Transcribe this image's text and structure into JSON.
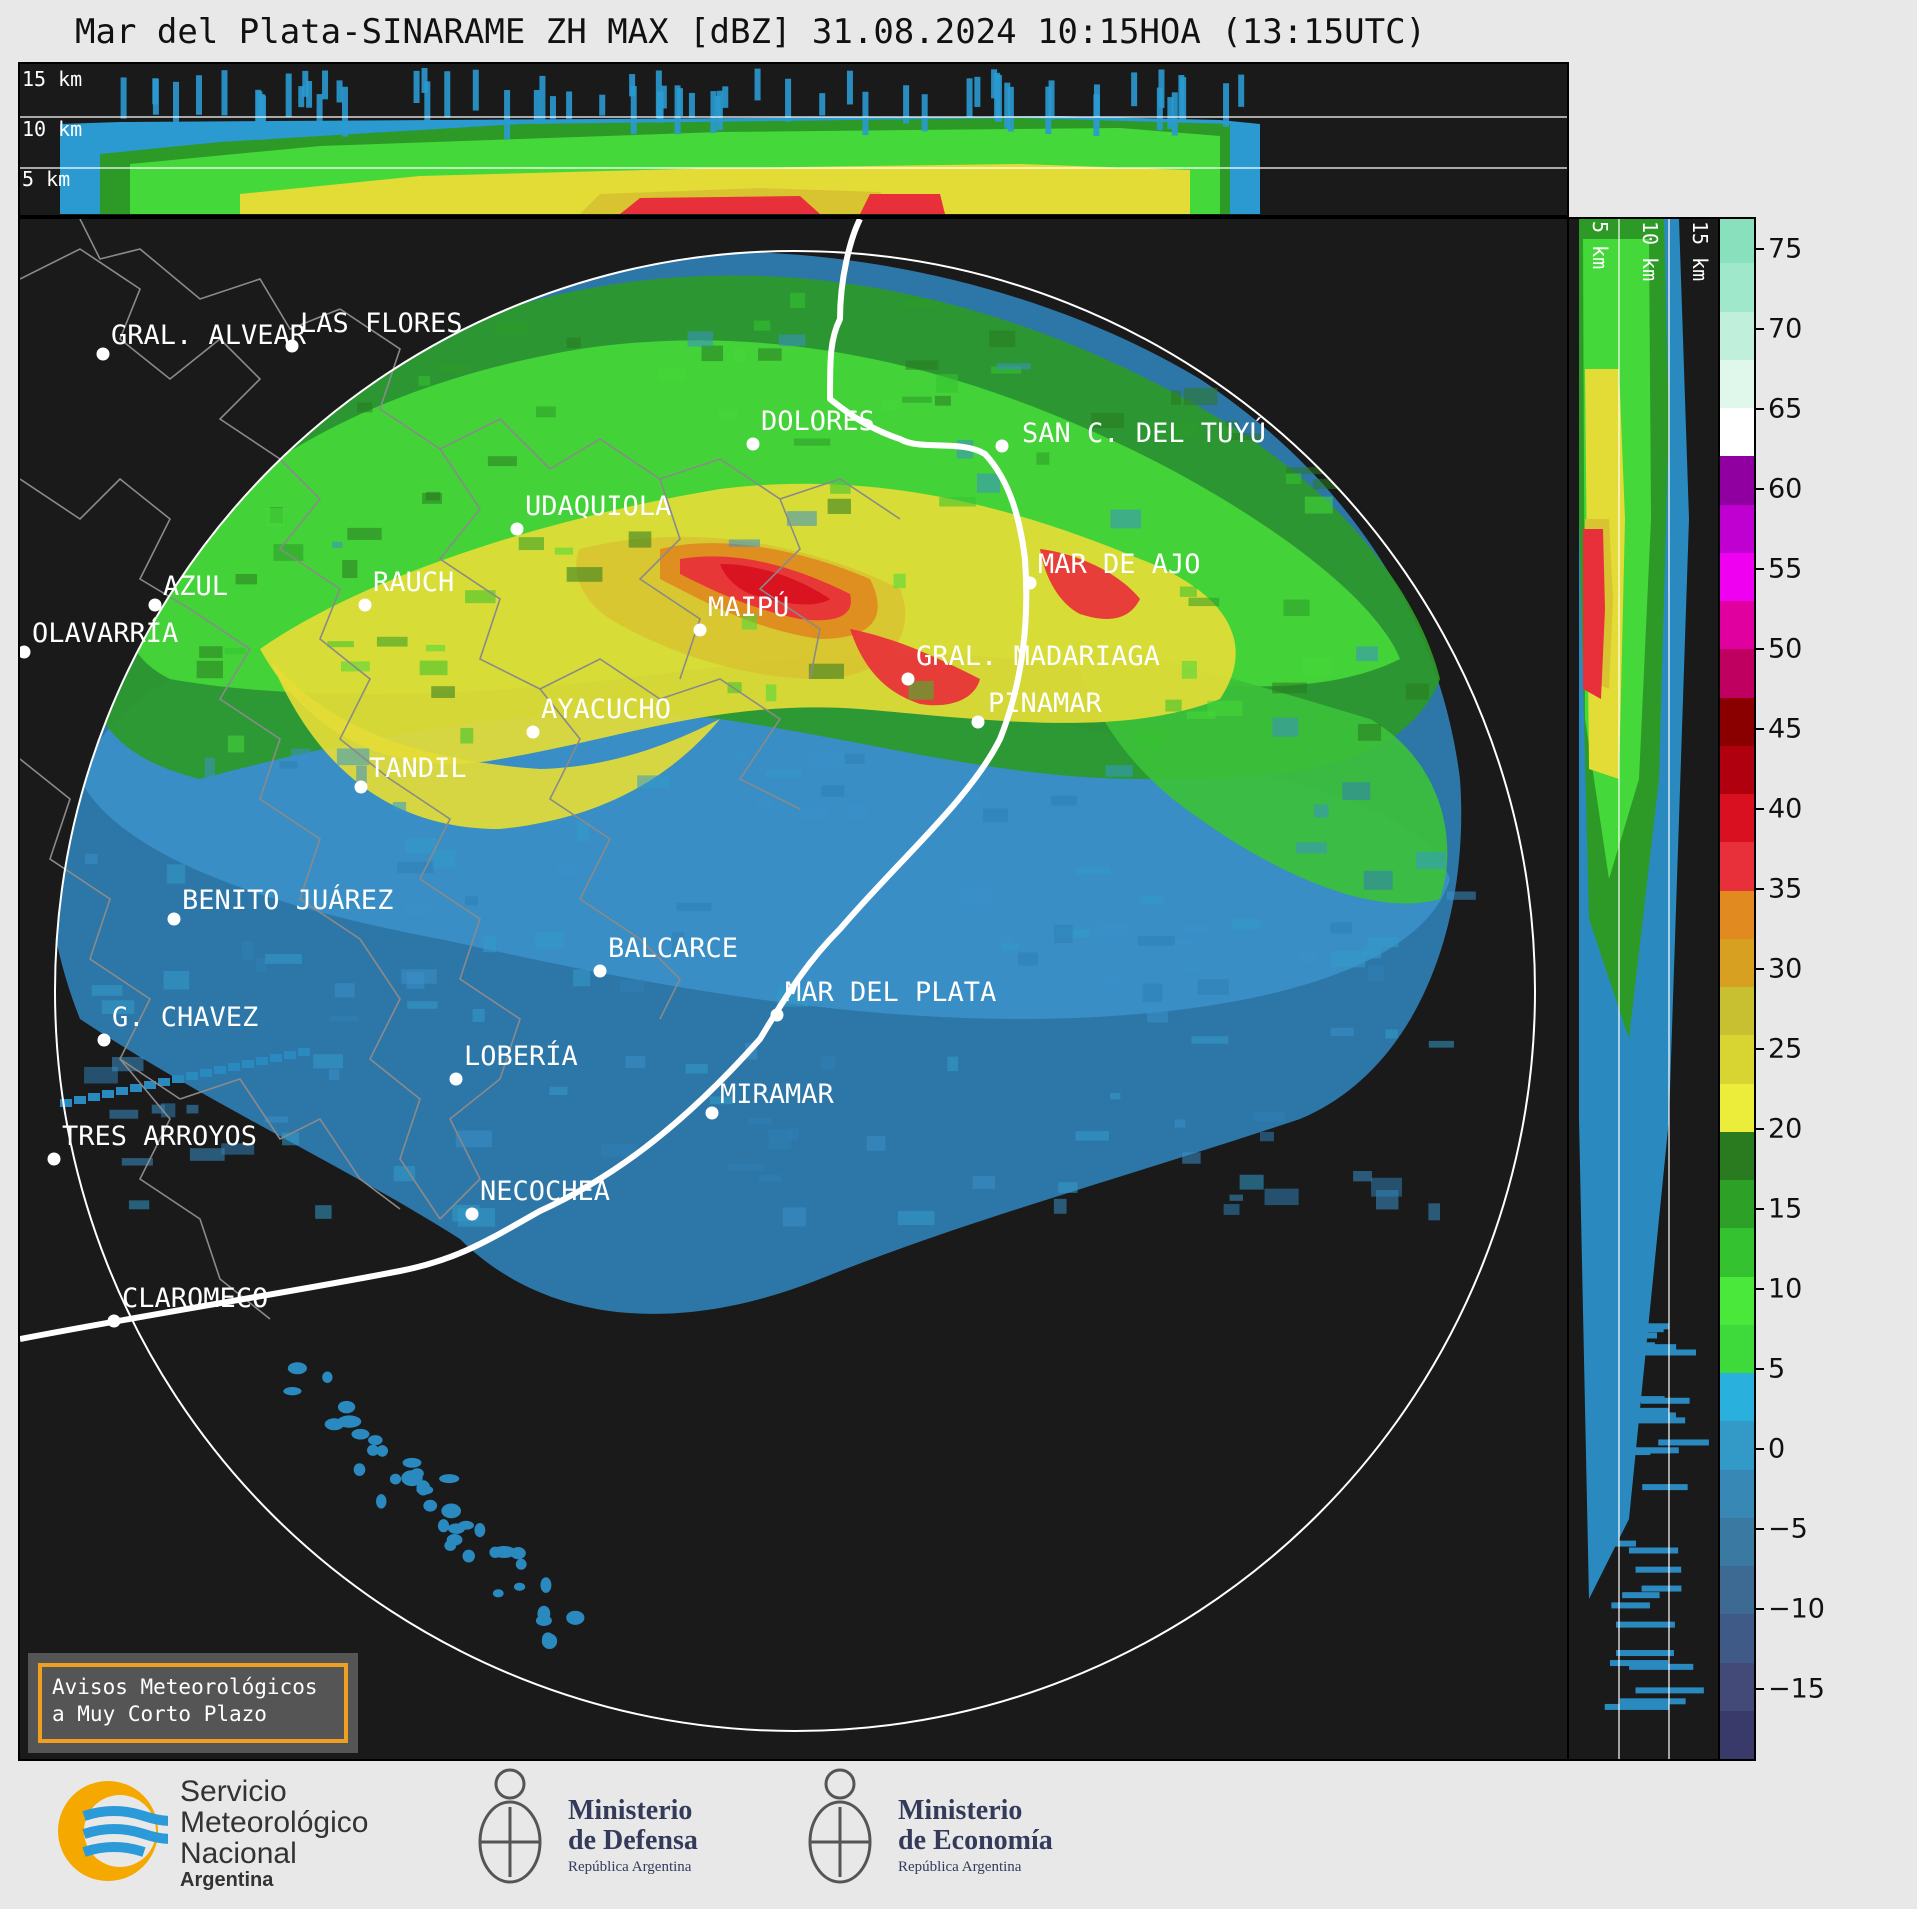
{
  "title": "Mar del Plata-SINARAME ZH MAX [dBZ] 31.08.2024 10:15HOA (13:15UTC)",
  "height_labels": [
    "15 km",
    "10 km",
    "5 km"
  ],
  "cities": [
    {
      "name": "GRAL. ALVEAR"
    },
    {
      "name": "LAS FLORES"
    },
    {
      "name": "DOLORES"
    },
    {
      "name": "SAN C. DEL TUYÚ"
    },
    {
      "name": "UDAQUIOLA"
    },
    {
      "name": "AZUL"
    },
    {
      "name": "OLAVARRÍA"
    },
    {
      "name": "RAUCH"
    },
    {
      "name": "MAIPÚ"
    },
    {
      "name": "MAR DE AJO"
    },
    {
      "name": "GRAL. MADARIAGA"
    },
    {
      "name": "PINAMAR"
    },
    {
      "name": "AYACUCHO"
    },
    {
      "name": "TANDIL"
    },
    {
      "name": "BENITO JUÁREZ"
    },
    {
      "name": "BALCARCE"
    },
    {
      "name": "MAR DEL PLATA"
    },
    {
      "name": "G. CHAVEZ"
    },
    {
      "name": "LOBERÍA"
    },
    {
      "name": "MIRAMAR"
    },
    {
      "name": "TRES ARROYOS"
    },
    {
      "name": "NECOCHEA"
    },
    {
      "name": "CLAROMECO"
    }
  ],
  "colorbar": {
    "ticks": [
      "75",
      "70",
      "65",
      "60",
      "55",
      "50",
      "45",
      "40",
      "35",
      "30",
      "25",
      "20",
      "15",
      "10",
      "5",
      "0",
      "−5",
      "−10",
      "−15"
    ],
    "colors": [
      "#3a3a6a",
      "#434a78",
      "#3f5a86",
      "#3d6a92",
      "#3a7aa2",
      "#3788b4",
      "#339ac8",
      "#2ab0dc",
      "#3ed93a",
      "#4ae83a",
      "#34c230",
      "#2da028",
      "#2a7a20",
      "#ecec3a",
      "#d8d432",
      "#c8c030",
      "#d8a020",
      "#e08a20",
      "#e8303a",
      "#d81020",
      "#b00010",
      "#8a0000",
      "#c00060",
      "#e000a0",
      "#f000f0",
      "#c000d0",
      "#9000a0",
      "#ffffff",
      "#e0f8ec",
      "#c0f0dc",
      "#a0e8cc",
      "#88e0bc"
    ]
  },
  "avisos": {
    "line1": "Avisos Meteorológicos",
    "line2": "a Muy Corto Plazo"
  },
  "logos": {
    "smn": {
      "line1": "Servicio",
      "line2": "Meteorológico",
      "line3": "Nacional",
      "line4": "Argentina"
    },
    "defensa": {
      "line1": "Ministerio",
      "line2": "de Defensa",
      "line3": "República Argentina"
    },
    "economia": {
      "line1": "Ministerio",
      "line2": "de Economía",
      "line3": "República Argentina"
    }
  },
  "colors": {
    "accent_orange": "#f0a020",
    "smn_blue": "#2a9ad8",
    "smn_yellow": "#f5a800"
  }
}
